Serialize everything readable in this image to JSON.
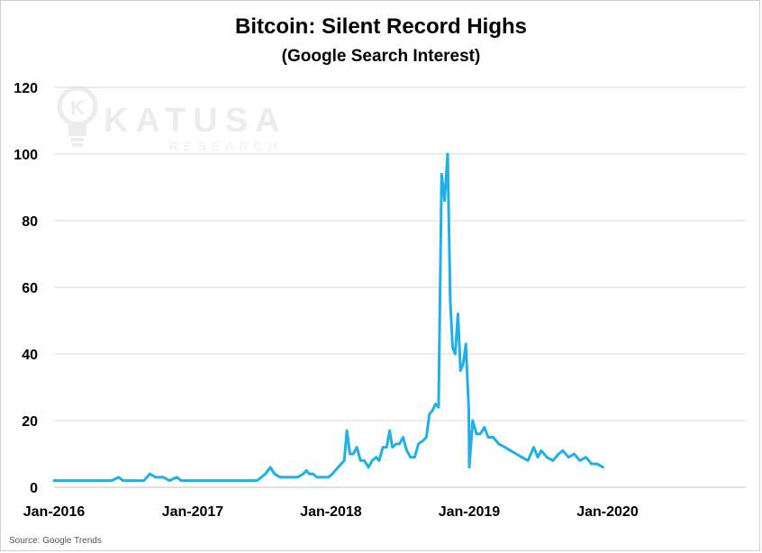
{
  "title": "Bitcoin: Silent Record Highs",
  "subtitle": "(Google Search Interest)",
  "source": "Source: Google Trends",
  "watermark": {
    "brand": "KATUSA",
    "tagline": "RESEARCH"
  },
  "colors": {
    "line": "#1fb0e8",
    "grid": "#d9d9d9",
    "text": "#000000",
    "watermark": "#ececec"
  },
  "chart_data": {
    "type": "line",
    "title": "Bitcoin: Silent Record Highs",
    "subtitle": "(Google Search Interest)",
    "xlabel": "",
    "ylabel": "",
    "ylim": [
      0,
      120
    ],
    "yticks": [
      0,
      20,
      40,
      60,
      80,
      100,
      120
    ],
    "xticks": [
      {
        "label": "Jan-2016",
        "date": "2016-01-01"
      },
      {
        "label": "Jan-2017",
        "date": "2017-01-01"
      },
      {
        "label": "Jan-2018",
        "date": "2018-01-01"
      },
      {
        "label": "Jan-2019",
        "date": "2019-01-01"
      },
      {
        "label": "Jan-2020",
        "date": "2020-01-01"
      }
    ],
    "grid": true,
    "series": [
      {
        "points": [
          [
            "2016-01-01",
            2
          ],
          [
            "2016-02-01",
            2
          ],
          [
            "2016-03-01",
            2
          ],
          [
            "2016-04-01",
            2
          ],
          [
            "2016-05-01",
            2
          ],
          [
            "2016-06-01",
            2
          ],
          [
            "2016-06-20",
            3
          ],
          [
            "2016-07-01",
            2
          ],
          [
            "2016-08-01",
            2
          ],
          [
            "2016-08-25",
            2
          ],
          [
            "2016-09-10",
            4
          ],
          [
            "2016-09-25",
            3
          ],
          [
            "2016-10-15",
            3
          ],
          [
            "2016-11-01",
            2
          ],
          [
            "2016-11-20",
            3
          ],
          [
            "2016-12-01",
            2
          ],
          [
            "2016-12-20",
            2
          ],
          [
            "2017-01-01",
            2
          ],
          [
            "2017-02-01",
            2
          ],
          [
            "2017-03-01",
            2
          ],
          [
            "2017-04-01",
            2
          ],
          [
            "2017-05-01",
            2
          ],
          [
            "2017-06-01",
            2
          ],
          [
            "2017-06-20",
            2
          ],
          [
            "2017-07-01",
            3
          ],
          [
            "2017-07-12",
            4
          ],
          [
            "2017-07-25",
            6
          ],
          [
            "2017-08-05",
            4
          ],
          [
            "2017-08-20",
            3
          ],
          [
            "2017-09-05",
            3
          ],
          [
            "2017-09-20",
            3
          ],
          [
            "2017-10-05",
            3
          ],
          [
            "2017-10-20",
            4
          ],
          [
            "2017-10-28",
            5
          ],
          [
            "2017-11-05",
            4
          ],
          [
            "2017-11-15",
            4
          ],
          [
            "2017-11-25",
            3
          ],
          [
            "2017-12-10",
            3
          ],
          [
            "2017-12-25",
            3
          ],
          [
            "2018-01-05",
            4
          ],
          [
            "2018-01-20",
            6
          ],
          [
            "2018-02-05",
            8
          ],
          [
            "2018-02-12",
            17
          ],
          [
            "2018-02-20",
            10
          ],
          [
            "2018-03-01",
            10
          ],
          [
            "2018-03-10",
            12
          ],
          [
            "2018-03-20",
            8
          ],
          [
            "2018-03-30",
            8
          ],
          [
            "2018-04-10",
            6
          ],
          [
            "2018-04-20",
            8
          ],
          [
            "2018-04-30",
            9
          ],
          [
            "2018-05-08",
            8
          ],
          [
            "2018-05-18",
            12
          ],
          [
            "2018-05-28",
            12
          ],
          [
            "2018-06-05",
            17
          ],
          [
            "2018-06-12",
            12
          ],
          [
            "2018-06-22",
            13
          ],
          [
            "2018-07-01",
            13
          ],
          [
            "2018-07-10",
            15
          ],
          [
            "2018-07-20",
            11
          ],
          [
            "2018-07-30",
            9
          ],
          [
            "2018-08-10",
            9
          ],
          [
            "2018-08-20",
            13
          ],
          [
            "2018-09-01",
            14
          ],
          [
            "2018-09-10",
            15
          ],
          [
            "2018-09-18",
            22
          ],
          [
            "2018-09-26",
            23
          ],
          [
            "2018-10-04",
            25
          ],
          [
            "2018-10-12",
            24
          ],
          [
            "2018-10-20",
            94
          ],
          [
            "2018-10-28",
            86
          ],
          [
            "2018-11-05",
            100
          ],
          [
            "2018-11-12",
            56
          ],
          [
            "2018-11-18",
            42
          ],
          [
            "2018-11-25",
            40
          ],
          [
            "2018-12-02",
            52
          ],
          [
            "2018-12-09",
            35
          ],
          [
            "2018-12-16",
            37
          ],
          [
            "2018-12-23",
            43
          ],
          [
            "2018-12-31",
            23
          ],
          [
            "2019-01-10",
            20
          ],
          [
            "2019-01-20",
            16
          ],
          [
            "2019-01-30",
            16
          ],
          [
            "2019-02-10",
            18
          ],
          [
            "2019-02-20",
            15
          ],
          [
            "2019-03-05",
            15
          ],
          [
            "2019-03-20",
            13
          ],
          [
            "2019-04-05",
            12
          ],
          [
            "2019-04-20",
            11
          ],
          [
            "2019-05-05",
            10
          ],
          [
            "2019-05-20",
            9
          ],
          [
            "2019-06-05",
            8
          ],
          [
            "2019-06-20",
            12
          ],
          [
            "2019-07-01",
            9
          ],
          [
            "2019-07-10",
            11
          ],
          [
            "2019-07-25",
            9
          ],
          [
            "2019-08-10",
            8
          ],
          [
            "2019-08-25",
            10
          ],
          [
            "2019-09-05",
            11
          ],
          [
            "2019-09-20",
            9
          ],
          [
            "2019-10-05",
            10
          ],
          [
            "2019-10-20",
            8
          ],
          [
            "2019-11-05",
            9
          ],
          [
            "2019-11-20",
            7
          ],
          [
            "2019-12-05",
            7
          ],
          [
            "2019-12-20",
            6
          ],
          [
            "2019-01-01",
            6
          ]
        ]
      }
    ]
  }
}
